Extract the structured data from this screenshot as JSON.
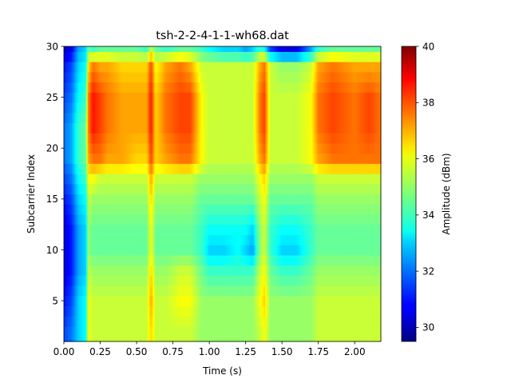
{
  "chart_data": {
    "type": "heatmap",
    "title": "tsh-2-2-4-1-1-wh68.dat",
    "xlabel": "Time (s)",
    "ylabel": "Subcarrier Index",
    "xlim": [
      0,
      2.18
    ],
    "ylim": [
      1,
      30
    ],
    "x_ticks": [
      "0.00",
      "0.25",
      "0.50",
      "0.75",
      "1.00",
      "1.25",
      "1.50",
      "1.75",
      "2.00"
    ],
    "y_ticks": [
      "5",
      "10",
      "15",
      "20",
      "25",
      "30"
    ],
    "colorbar": {
      "label": "Amplitude (dBm)",
      "range": [
        29.5,
        40
      ],
      "ticks": [
        "30",
        "32",
        "34",
        "36",
        "38",
        "40"
      ],
      "colormap": "jet"
    },
    "time_columns": [
      0.0,
      0.05,
      0.1,
      0.15,
      0.17,
      0.2,
      0.25,
      0.3,
      0.4,
      0.5,
      0.57,
      0.6,
      0.63,
      0.7,
      0.8,
      0.87,
      0.95,
      1.0,
      1.1,
      1.2,
      1.25,
      1.3,
      1.35,
      1.38,
      1.42,
      1.5,
      1.6,
      1.7,
      1.75,
      1.85,
      2.0,
      2.1,
      2.18
    ],
    "subcarrier_rows": [
      30,
      28,
      25,
      22,
      19,
      17,
      15,
      12,
      10,
      8,
      5,
      2
    ],
    "amplitude": [
      [
        30.2,
        30.5,
        32.5,
        33.0,
        34.5,
        34.0,
        34.5,
        34.5,
        34.5,
        34.5,
        34.0,
        35.5,
        34.5,
        34.0,
        34.5,
        34.5,
        34.0,
        33.5,
        33.0,
        33.0,
        32.5,
        33.0,
        34.0,
        33.5,
        31.5,
        30.5,
        30.5,
        32.5,
        34.0,
        34.5,
        34.5,
        34.5,
        34.5
      ],
      [
        31.0,
        31.5,
        33.0,
        33.5,
        36.5,
        37.5,
        37.0,
        37.0,
        36.5,
        36.5,
        36.5,
        38.0,
        36.0,
        37.0,
        37.5,
        37.0,
        35.5,
        35.5,
        35.5,
        35.5,
        35.5,
        35.5,
        37.0,
        37.5,
        35.5,
        35.0,
        35.0,
        35.5,
        37.0,
        37.5,
        37.0,
        37.0,
        37.0
      ],
      [
        31.5,
        32.0,
        33.5,
        34.0,
        37.5,
        38.5,
        38.0,
        37.5,
        37.0,
        37.0,
        37.0,
        38.5,
        36.5,
        37.5,
        38.0,
        38.0,
        36.0,
        35.5,
        35.5,
        35.5,
        35.5,
        35.5,
        37.5,
        38.0,
        35.5,
        35.5,
        35.5,
        36.0,
        37.5,
        38.0,
        37.5,
        38.0,
        37.5
      ],
      [
        32.0,
        32.5,
        34.0,
        34.5,
        37.5,
        38.5,
        38.0,
        37.5,
        37.0,
        37.0,
        37.0,
        38.5,
        36.5,
        37.5,
        38.0,
        38.0,
        36.0,
        35.5,
        35.5,
        35.5,
        35.5,
        35.5,
        37.5,
        38.0,
        35.5,
        35.5,
        35.5,
        36.0,
        37.5,
        38.0,
        37.5,
        38.0,
        37.5
      ],
      [
        32.0,
        32.5,
        34.0,
        34.5,
        37.0,
        37.5,
        37.5,
        37.0,
        37.0,
        36.5,
        36.5,
        38.0,
        36.5,
        37.0,
        37.5,
        37.5,
        36.0,
        35.5,
        35.5,
        35.5,
        35.5,
        35.5,
        37.0,
        37.5,
        35.5,
        35.5,
        35.5,
        36.0,
        37.0,
        37.5,
        37.5,
        37.5,
        37.5
      ],
      [
        31.5,
        32.0,
        33.5,
        34.0,
        36.0,
        36.0,
        35.5,
        35.5,
        35.5,
        35.5,
        35.5,
        37.0,
        35.5,
        35.5,
        35.5,
        35.5,
        35.0,
        35.0,
        35.0,
        35.0,
        35.0,
        35.0,
        36.0,
        36.5,
        35.0,
        35.0,
        35.0,
        35.0,
        35.5,
        35.5,
        35.5,
        35.5,
        35.5
      ],
      [
        31.0,
        31.5,
        33.0,
        33.5,
        35.5,
        35.0,
        35.0,
        35.0,
        35.0,
        35.0,
        35.0,
        36.5,
        35.0,
        35.0,
        35.0,
        35.0,
        34.5,
        34.5,
        34.5,
        34.5,
        34.5,
        34.5,
        35.5,
        36.0,
        34.5,
        34.5,
        34.5,
        34.5,
        35.0,
        35.0,
        35.0,
        35.0,
        35.0
      ],
      [
        30.5,
        31.0,
        32.5,
        33.0,
        35.0,
        34.5,
        34.5,
        34.5,
        34.5,
        34.5,
        34.5,
        36.0,
        34.5,
        34.5,
        34.5,
        34.5,
        34.0,
        33.5,
        33.5,
        33.5,
        33.5,
        33.0,
        35.0,
        35.5,
        34.0,
        33.5,
        33.5,
        34.0,
        34.5,
        34.5,
        34.5,
        34.5,
        34.5
      ],
      [
        30.5,
        31.0,
        32.5,
        33.0,
        35.0,
        34.5,
        34.5,
        34.5,
        34.5,
        34.5,
        34.5,
        36.0,
        34.5,
        34.5,
        34.5,
        34.5,
        34.0,
        33.0,
        33.0,
        33.5,
        33.0,
        32.5,
        35.0,
        35.5,
        34.0,
        33.0,
        33.0,
        34.0,
        34.5,
        34.5,
        34.5,
        34.5,
        34.5
      ],
      [
        30.5,
        31.0,
        32.5,
        33.0,
        35.5,
        35.0,
        35.0,
        35.0,
        35.0,
        35.0,
        35.0,
        36.5,
        35.0,
        35.0,
        35.5,
        35.5,
        34.5,
        34.0,
        34.0,
        34.0,
        34.0,
        34.0,
        35.5,
        36.0,
        34.5,
        34.0,
        34.0,
        34.5,
        35.0,
        35.0,
        35.0,
        35.0,
        35.0
      ],
      [
        31.0,
        31.5,
        33.0,
        33.5,
        36.0,
        35.5,
        35.5,
        35.5,
        35.5,
        35.5,
        35.5,
        37.0,
        35.5,
        35.5,
        36.0,
        36.0,
        35.0,
        35.0,
        35.0,
        35.0,
        35.0,
        35.0,
        36.0,
        36.5,
        35.0,
        35.0,
        35.0,
        35.0,
        35.5,
        35.5,
        35.5,
        35.5,
        35.5
      ],
      [
        31.5,
        32.0,
        33.0,
        33.5,
        36.0,
        35.5,
        35.5,
        35.5,
        35.5,
        35.5,
        35.5,
        36.5,
        35.5,
        35.5,
        35.5,
        35.5,
        35.0,
        35.0,
        35.0,
        35.0,
        35.0,
        35.0,
        35.5,
        36.0,
        35.0,
        35.0,
        35.0,
        35.0,
        35.5,
        35.5,
        35.5,
        35.5,
        35.5
      ]
    ]
  }
}
